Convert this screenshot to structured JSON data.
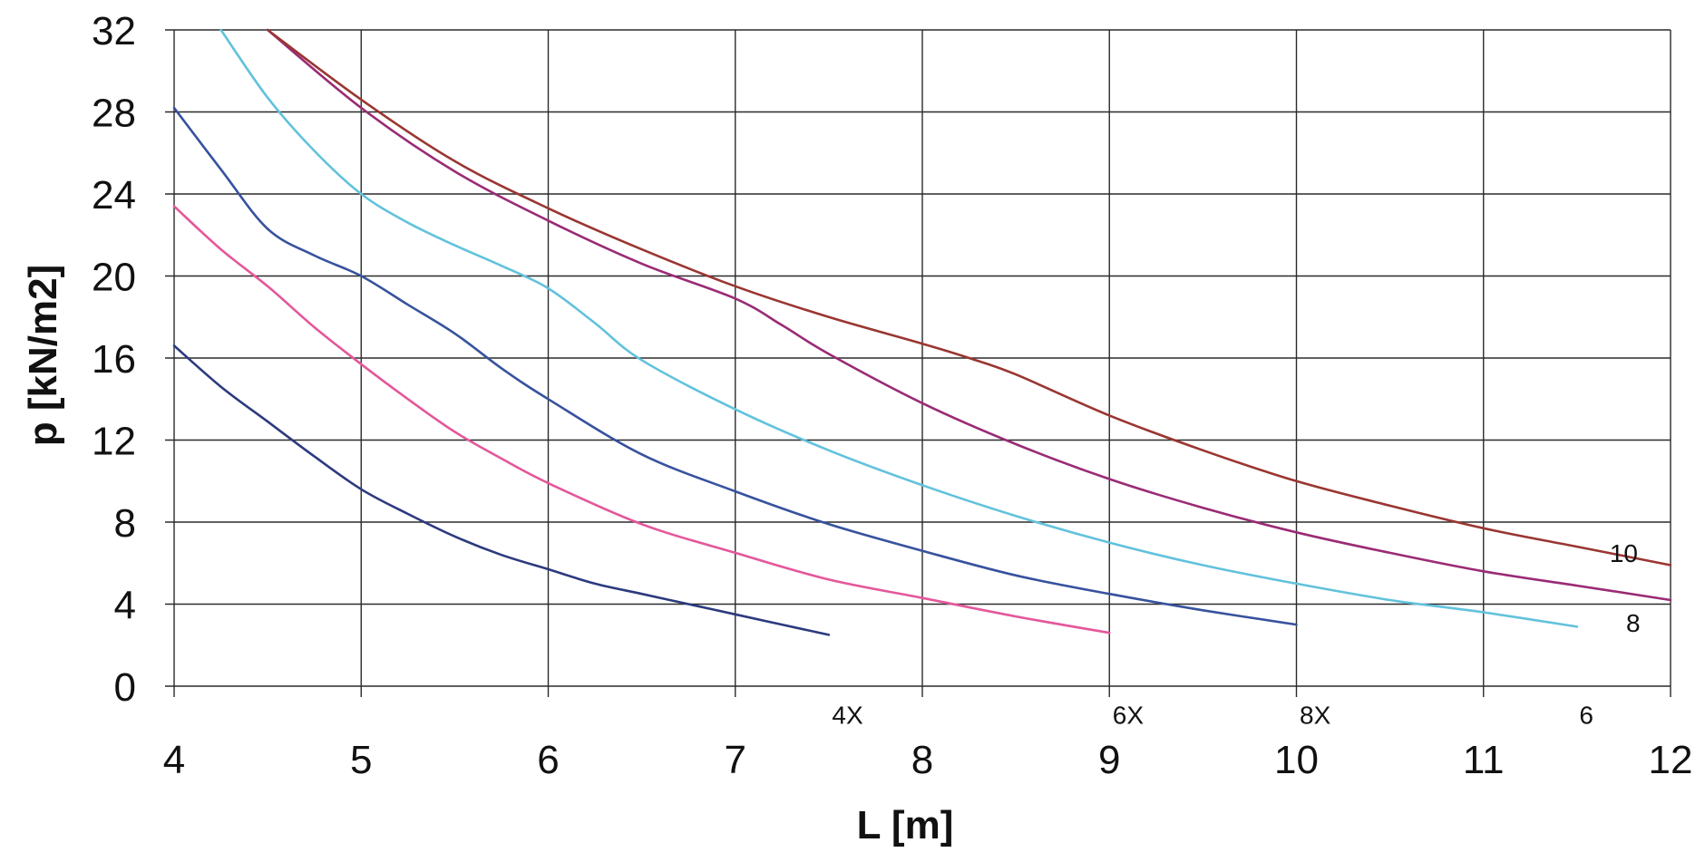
{
  "chart_data": {
    "type": "line",
    "xlabel": "L [m]",
    "ylabel": "p [kN/m2]",
    "xlim": [
      4,
      12
    ],
    "ylim": [
      0,
      32
    ],
    "x_ticks": [
      "4",
      "5",
      "6",
      "7",
      "8",
      "9",
      "10",
      "11",
      "12"
    ],
    "y_ticks": [
      "0",
      "4",
      "8",
      "12",
      "16",
      "20",
      "24",
      "28",
      "32"
    ],
    "grid": true,
    "series": [
      {
        "name": "4X",
        "color": "#2c3a7e",
        "x": [
          4.0,
          4.25,
          4.5,
          4.75,
          5.0,
          5.25,
          5.5,
          5.75,
          6.0,
          6.25,
          6.5,
          6.75,
          7.0,
          7.25,
          7.5
        ],
        "y": [
          16.6,
          14.6,
          12.9,
          11.2,
          9.6,
          8.4,
          7.3,
          6.4,
          5.7,
          5.0,
          4.5,
          4.0,
          3.5,
          3.0,
          2.5
        ]
      },
      {
        "name": "6X",
        "color": "#e4579b",
        "x": [
          4.0,
          4.25,
          4.5,
          4.75,
          5.0,
          5.25,
          5.5,
          5.75,
          6.0,
          6.5,
          7.0,
          7.5,
          8.0,
          8.5,
          9.0
        ],
        "y": [
          23.4,
          21.3,
          19.5,
          17.5,
          15.7,
          14.0,
          12.4,
          11.1,
          9.9,
          7.9,
          6.5,
          5.2,
          4.3,
          3.4,
          2.6
        ]
      },
      {
        "name": "8X",
        "color": "#37529e",
        "x": [
          4.0,
          4.25,
          4.5,
          4.75,
          5.0,
          5.25,
          5.5,
          5.75,
          6.0,
          6.5,
          7.0,
          7.5,
          8.0,
          8.5,
          9.0,
          9.5,
          10.0
        ],
        "y": [
          28.2,
          25.2,
          22.3,
          21.0,
          20.0,
          18.6,
          17.2,
          15.5,
          14.0,
          11.3,
          9.5,
          7.9,
          6.6,
          5.4,
          4.5,
          3.7,
          3.0
        ]
      },
      {
        "name": "6",
        "color": "#62c2dc",
        "x": [
          4.25,
          4.5,
          4.75,
          5.0,
          5.25,
          5.5,
          5.75,
          6.0,
          6.25,
          6.5,
          7.0,
          7.5,
          8.0,
          8.5,
          9.0,
          9.5,
          10.0,
          10.5,
          11.0,
          11.5
        ],
        "y": [
          32.0,
          28.7,
          26.1,
          24.0,
          22.6,
          21.5,
          20.5,
          19.4,
          17.7,
          15.9,
          13.5,
          11.5,
          9.8,
          8.3,
          7.0,
          5.9,
          5.0,
          4.2,
          3.6,
          2.9
        ]
      },
      {
        "name": "8",
        "color": "#9a2b75",
        "x": [
          4.5,
          5.0,
          5.5,
          6.0,
          6.5,
          7.0,
          7.25,
          7.5,
          8.0,
          8.5,
          9.0,
          9.5,
          10.0,
          10.5,
          11.0,
          11.5,
          12.0
        ],
        "y": [
          32.0,
          28.2,
          25.1,
          22.7,
          20.6,
          18.9,
          17.6,
          16.2,
          13.8,
          11.8,
          10.1,
          8.7,
          7.5,
          6.5,
          5.6,
          4.9,
          4.2
        ]
      },
      {
        "name": "10",
        "color": "#9a3632",
        "x": [
          4.5,
          5.0,
          5.5,
          6.0,
          6.5,
          7.0,
          7.5,
          8.0,
          8.25,
          8.5,
          9.0,
          9.5,
          10.0,
          10.5,
          11.0,
          11.5,
          12.0
        ],
        "y": [
          32.0,
          28.6,
          25.6,
          23.3,
          21.3,
          19.5,
          18.0,
          16.7,
          16.0,
          15.2,
          13.2,
          11.5,
          10.0,
          8.8,
          7.7,
          6.8,
          5.9
        ]
      }
    ],
    "series_labels": [
      {
        "text": "4X",
        "at_x": 7.6,
        "at_y": -1.4
      },
      {
        "text": "6X",
        "at_x": 9.1,
        "at_y": -1.4
      },
      {
        "text": "8X",
        "at_x": 10.1,
        "at_y": -1.4
      },
      {
        "text": "6",
        "at_x": 11.55,
        "at_y": -1.4
      },
      {
        "text": "8",
        "at_x": 11.8,
        "at_y": 3.1
      },
      {
        "text": "10",
        "at_x": 11.75,
        "at_y": 6.5
      }
    ]
  }
}
